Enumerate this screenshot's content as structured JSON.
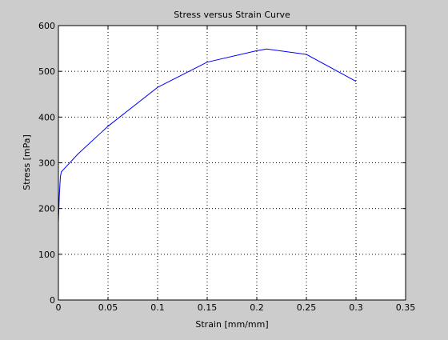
{
  "chart_data": {
    "type": "line",
    "title": "Stress versus Strain Curve",
    "xlabel": "Strain [mm/mm]",
    "ylabel": "Stress [mPa]",
    "xlim": [
      0,
      0.35
    ],
    "ylim": [
      0,
      600
    ],
    "xticks": [
      0,
      0.05,
      0.1,
      0.15,
      0.2,
      0.25,
      0.3,
      0.35
    ],
    "xtick_labels": [
      "0",
      "0.05",
      "0.1",
      "0.15",
      "0.2",
      "0.25",
      "0.3",
      "0.35"
    ],
    "yticks": [
      0,
      100,
      200,
      300,
      400,
      500,
      600
    ],
    "ytick_labels": [
      "0",
      "100",
      "200",
      "300",
      "400",
      "500",
      "600"
    ],
    "grid": true,
    "grid_style": "dotted",
    "series": [
      {
        "color": "#0000ff",
        "x": [
          0.0,
          0.001,
          0.002,
          0.003,
          0.005,
          0.02,
          0.05,
          0.1,
          0.15,
          0.2,
          0.21,
          0.25,
          0.3
        ],
        "y": [
          170,
          230,
          270,
          280,
          285,
          320,
          380,
          465,
          520,
          545,
          549,
          537,
          478
        ]
      }
    ]
  }
}
